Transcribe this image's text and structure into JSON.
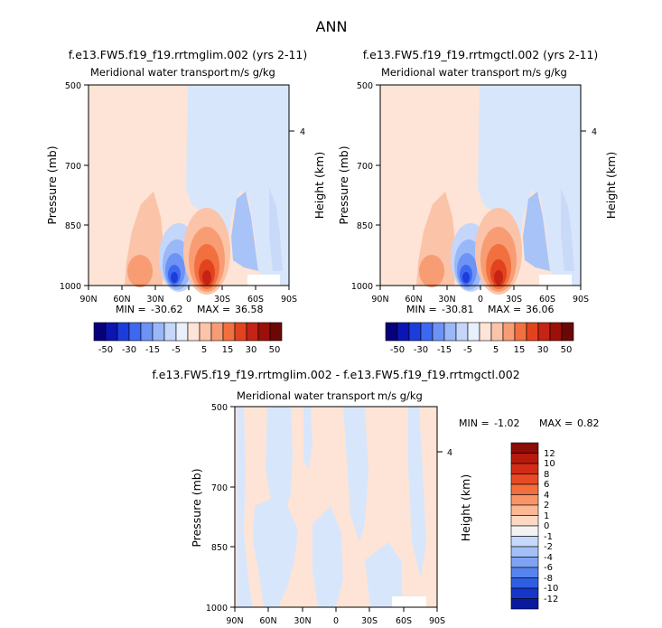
{
  "page": {
    "title": "ANN"
  },
  "chart_data": [
    {
      "type": "contour",
      "title": "f.e13.FW5.f19_f19.rrtmglim.002 (yrs 2-11)",
      "subtitle": "Meridional water transport",
      "units": "m/s g/kg",
      "xlabel": "",
      "ylabel": "Pressure (mb)",
      "right_label": "Height (km)",
      "x_ticks": [
        "90N",
        "60N",
        "30N",
        "0",
        "30S",
        "60S",
        "90S"
      ],
      "y_ticks": [
        "500",
        "700",
        "850",
        "1000"
      ],
      "right_ticks": [
        "4"
      ],
      "stats": {
        "min_label": "MIN =",
        "min": "-30.62",
        "max_label": "MAX =",
        "max": "36.58"
      },
      "colorbar": {
        "orientation": "horizontal",
        "labels": [
          "-50",
          "-30",
          "-15",
          "-5",
          "5",
          "15",
          "30",
          "50"
        ],
        "colors": [
          "#08007a",
          "#0b15b4",
          "#1c3ddb",
          "#3d68f0",
          "#6c93f5",
          "#9ab7f8",
          "#c4d6fa",
          "#e8f0fd",
          "#fde4d6",
          "#fbc3a8",
          "#f89c74",
          "#f2703f",
          "#e2431e",
          "#c52313",
          "#9b1109",
          "#6b0805"
        ]
      }
    },
    {
      "type": "contour",
      "title": "f.e13.FW5.f19_f19.rrtmgctl.002 (yrs 2-11)",
      "subtitle": "Meridional water transport",
      "units": "m/s g/kg",
      "xlabel": "",
      "ylabel": "Pressure (mb)",
      "right_label": "Height (km)",
      "x_ticks": [
        "90N",
        "60N",
        "30N",
        "0",
        "30S",
        "60S",
        "90S"
      ],
      "y_ticks": [
        "500",
        "700",
        "850",
        "1000"
      ],
      "right_ticks": [
        "4"
      ],
      "stats": {
        "min_label": "MIN =",
        "min": "-30.81",
        "max_label": "MAX =",
        "max": "36.06"
      },
      "colorbar": {
        "orientation": "horizontal",
        "labels": [
          "-50",
          "-30",
          "-15",
          "-5",
          "5",
          "15",
          "30",
          "50"
        ],
        "colors": [
          "#08007a",
          "#0b15b4",
          "#1c3ddb",
          "#3d68f0",
          "#6c93f5",
          "#9ab7f8",
          "#c4d6fa",
          "#e8f0fd",
          "#fde4d6",
          "#fbc3a8",
          "#f89c74",
          "#f2703f",
          "#e2431e",
          "#c52313",
          "#9b1109",
          "#6b0805"
        ]
      }
    },
    {
      "type": "contour",
      "title": "f.e13.FW5.f19_f19.rrtmglim.002 - f.e13.FW5.f19_f19.rrtmgctl.002",
      "subtitle": "Meridional water transport",
      "units": "m/s g/kg",
      "xlabel": "",
      "ylabel": "Pressure (mb)",
      "right_label": "Height (km)",
      "x_ticks": [
        "90N",
        "60N",
        "30N",
        "0",
        "30S",
        "60S",
        "90S"
      ],
      "y_ticks": [
        "500",
        "700",
        "850",
        "1000"
      ],
      "right_ticks": [
        "4"
      ],
      "stats": {
        "min_label": "MIN =",
        "min": "-1.02",
        "max_label": "MAX =",
        "max": "0.82"
      },
      "colorbar": {
        "orientation": "vertical",
        "labels": [
          "12",
          "10",
          "8",
          "6",
          "4",
          "2",
          "1",
          "0",
          "-1",
          "-2",
          "-4",
          "-6",
          "-8",
          "-10",
          "-12"
        ],
        "colors": [
          "#8c0c06",
          "#b51a0d",
          "#d22c16",
          "#e84a25",
          "#f46d3c",
          "#f89466",
          "#fbb893",
          "#fdd8c3",
          "#f2f2f2",
          "#c6d8fb",
          "#a3bff8",
          "#7ea3f3",
          "#5683ed",
          "#2f5ee3",
          "#1536c8",
          "#0a1a9e"
        ]
      }
    }
  ]
}
